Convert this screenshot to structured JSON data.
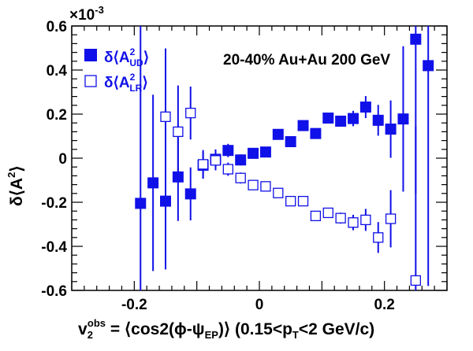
{
  "chart_data": {
    "type": "scatter",
    "annotation": "20-40% Au+Au 200 GeV",
    "multiplier": "×10",
    "multiplier_exp": "-3",
    "ylabel": {
      "pre": "δ⟨A",
      "sup": "2",
      "post": "⟩"
    },
    "xlabel": {
      "v": "v",
      "sub": "2",
      "sup": "obs",
      "mid": " = ⟨cos2(ϕ-ψ",
      "sub2": "EP",
      "post": ")⟩ (0.15<p",
      "sub3": "T",
      "tail": "<2 GeV/c)"
    },
    "xlim": [
      -0.3,
      0.3
    ],
    "ylim": [
      -0.6,
      0.6
    ],
    "xticks": [
      -0.2,
      0,
      0.2
    ],
    "xtick_labels": [
      "-0.2",
      "0",
      "0.2"
    ],
    "yticks": [
      -0.6,
      -0.4,
      -0.2,
      0,
      0.2,
      0.4,
      0.6
    ],
    "ytick_labels": [
      "-0.6",
      "-0.4",
      "-0.2",
      "0",
      "0.2",
      "0.4",
      "0.6"
    ],
    "color": "#1010e8",
    "series": [
      {
        "legend": {
          "pre": "δ⟨A",
          "sup": "2",
          "sub": "UD",
          "post": "⟩"
        },
        "marker": "filled-square",
        "points": [
          {
            "x": -0.19,
            "y": -0.205,
            "err": 0.9
          },
          {
            "x": -0.17,
            "y": -0.112,
            "err": 0.4
          },
          {
            "x": -0.15,
            "y": -0.195,
            "err": 0.31
          },
          {
            "x": -0.13,
            "y": -0.085,
            "err": 0.2
          },
          {
            "x": -0.11,
            "y": -0.162,
            "err": 0.12
          },
          {
            "x": -0.09,
            "y": -0.032,
            "err": 0.06
          },
          {
            "x": -0.07,
            "y": -0.005,
            "err": 0.045
          },
          {
            "x": -0.05,
            "y": 0.035,
            "err": 0.03
          },
          {
            "x": -0.03,
            "y": -0.008,
            "err": 0.025
          },
          {
            "x": -0.01,
            "y": 0.022,
            "err": 0.02
          },
          {
            "x": 0.01,
            "y": 0.028,
            "err": 0.02
          },
          {
            "x": 0.03,
            "y": 0.108,
            "err": 0.02
          },
          {
            "x": 0.05,
            "y": 0.075,
            "err": 0.02
          },
          {
            "x": 0.07,
            "y": 0.148,
            "err": 0.02
          },
          {
            "x": 0.09,
            "y": 0.112,
            "err": 0.02
          },
          {
            "x": 0.11,
            "y": 0.182,
            "err": 0.02
          },
          {
            "x": 0.13,
            "y": 0.168,
            "err": 0.025
          },
          {
            "x": 0.15,
            "y": 0.18,
            "err": 0.035
          },
          {
            "x": 0.17,
            "y": 0.232,
            "err": 0.05
          },
          {
            "x": 0.19,
            "y": 0.172,
            "err": 0.07
          },
          {
            "x": 0.21,
            "y": 0.132,
            "err": 0.13
          },
          {
            "x": 0.23,
            "y": 0.178,
            "err": 0.33
          },
          {
            "x": 0.25,
            "y": 0.54,
            "err": 0.7
          },
          {
            "x": 0.27,
            "y": 0.42,
            "err": 1.0
          }
        ]
      },
      {
        "legend": {
          "pre": "δ⟨A",
          "sup": "2",
          "sub": "LR",
          "post": "⟩"
        },
        "marker": "open-square",
        "points": [
          {
            "x": -0.15,
            "y": 0.188,
            "err": 0.31
          },
          {
            "x": -0.13,
            "y": 0.12,
            "err": 0.21
          },
          {
            "x": -0.11,
            "y": 0.205,
            "err": 0.12
          },
          {
            "x": -0.09,
            "y": -0.028,
            "err": 0.065
          },
          {
            "x": -0.07,
            "y": -0.01,
            "err": 0.045
          },
          {
            "x": -0.05,
            "y": -0.05,
            "err": 0.03
          },
          {
            "x": -0.03,
            "y": -0.09,
            "err": 0.025
          },
          {
            "x": -0.01,
            "y": -0.122,
            "err": 0.02
          },
          {
            "x": 0.01,
            "y": -0.128,
            "err": 0.02
          },
          {
            "x": 0.03,
            "y": -0.158,
            "err": 0.02
          },
          {
            "x": 0.05,
            "y": -0.195,
            "err": 0.02
          },
          {
            "x": 0.07,
            "y": -0.195,
            "err": 0.02
          },
          {
            "x": 0.09,
            "y": -0.262,
            "err": 0.02
          },
          {
            "x": 0.11,
            "y": -0.248,
            "err": 0.02
          },
          {
            "x": 0.13,
            "y": -0.272,
            "err": 0.025
          },
          {
            "x": 0.15,
            "y": -0.292,
            "err": 0.035
          },
          {
            "x": 0.17,
            "y": -0.28,
            "err": 0.05
          },
          {
            "x": 0.19,
            "y": -0.36,
            "err": 0.07
          },
          {
            "x": 0.21,
            "y": -0.275,
            "err": 0.13
          },
          {
            "x": 0.25,
            "y": -0.555,
            "err": 0.7
          }
        ]
      }
    ]
  }
}
